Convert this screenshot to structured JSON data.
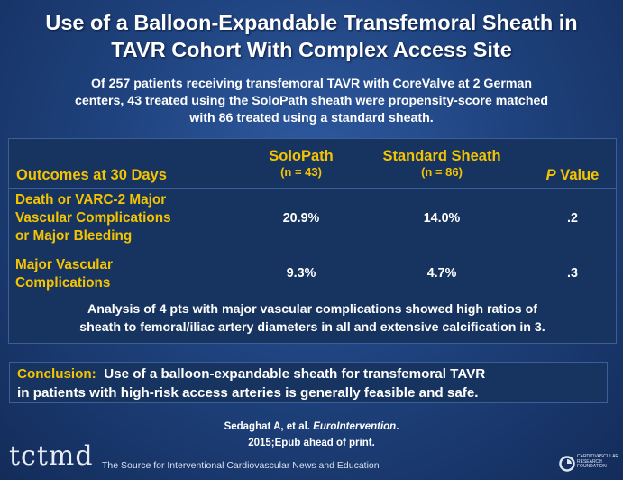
{
  "slide": {
    "title_line1": "Use of a Balloon-Expandable Transfemoral Sheath in",
    "title_line2": "TAVR Cohort With Complex Access Site",
    "subtitle_line1": "Of 257 patients receiving transfemoral TAVR with CoreValve at 2 German",
    "subtitle_line2": "centers, 43 treated using the SoloPath sheath were propensity-score matched",
    "subtitle_line3": "with 86 treated using a standard sheath."
  },
  "table": {
    "col0_header": "Outcomes at 30 Days",
    "col1_header": "SoloPath",
    "col1_sub": "(n = 43)",
    "col2_header": "Standard Sheath",
    "col2_sub": "(n = 86)",
    "col3_header_italic": "P",
    "col3_header_rest": " Value",
    "rows": [
      {
        "label_line1": "Death or VARC-2 Major",
        "label_line2": "Vascular Complications",
        "label_line3": "or Major Bleeding",
        "solopath": "20.9%",
        "standard": "14.0%",
        "p": ".2"
      },
      {
        "label_line1": "Major Vascular",
        "label_line2": "Complications",
        "solopath": "9.3%",
        "standard": "4.7%",
        "p": ".3"
      }
    ],
    "analysis_line1": "Analysis of 4 pts with major vascular complications showed high ratios of",
    "analysis_line2": "sheath to femoral/iliac artery diameters in all and extensive calcification in 3."
  },
  "conclusion": {
    "label": "Conclusion:",
    "text_line1": "  Use of a balloon-expandable sheath for transfemoral TAVR",
    "text_line2": "in patients with high-risk access arteries is generally feasible and safe."
  },
  "citation": {
    "authors": "Sedaghat A, et al. ",
    "journal": "EuroIntervention",
    "period": ".",
    "line2": "2015;Epub ahead of print."
  },
  "footer": {
    "logo": "tctmd",
    "tagline": "The Source for Interventional Cardiovascular News and Education",
    "crf_line1": "CARDIOVASCULAR",
    "crf_line2": "RESEARCH",
    "crf_line3": "FOUNDATION"
  },
  "colors": {
    "accent_yellow": "#f5c400",
    "background_blue": "#1f437f"
  }
}
